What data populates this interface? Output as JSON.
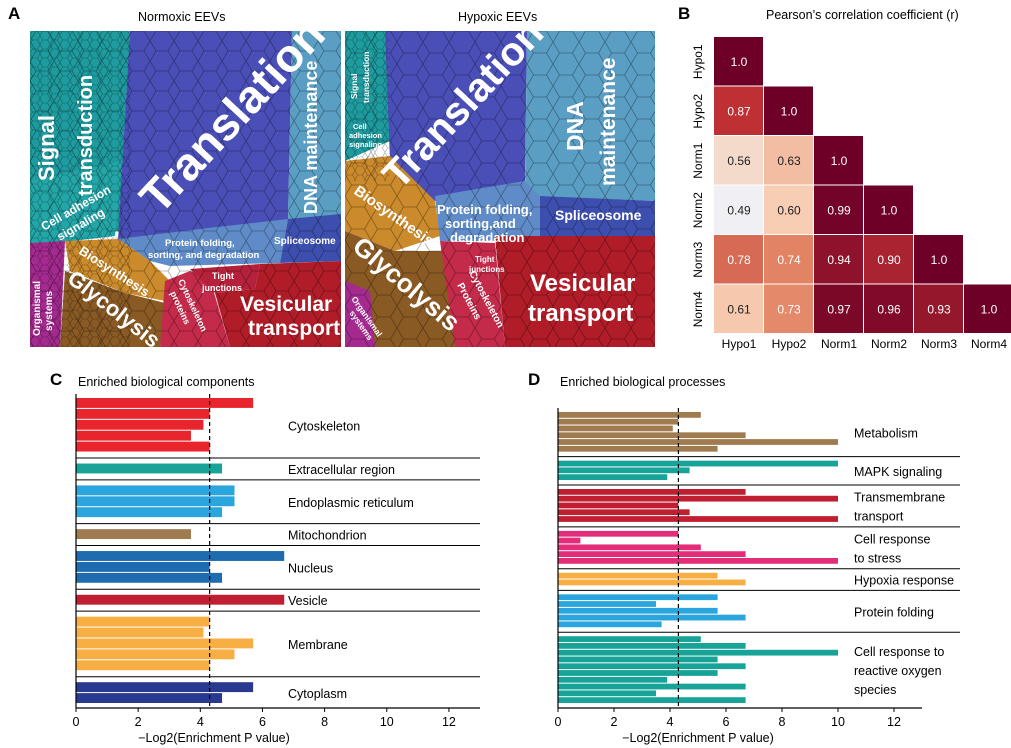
{
  "panels": {
    "A": "A",
    "B": "B",
    "C": "C",
    "D": "D"
  },
  "panel_a": {
    "titles": [
      "Normoxic EEVs",
      "Hypoxic EEVs"
    ],
    "normoxic_labels": {
      "signal": "Signal transduction",
      "cell_adhesion": "Cell adhesion signaling",
      "translation": "Translation",
      "dna": "DNA maintenance",
      "spliceosome": "Spliceosome",
      "protein_folding": "Protein folding, sorting, and degradation",
      "biosynthesis": "Biosynthesis",
      "glycolysis": "Glycolysis",
      "organismal": "Organismal systems",
      "cytoskeleton": "Cytoskeleton proteins",
      "tight": "Tight junctions",
      "vesicular": "Vesicular transport"
    },
    "hypoxic_labels": {
      "signal": "Signal transduction",
      "cell_adhesion": "Cell adhesion signaling",
      "translation": "Translation",
      "dna": "DNA maintenance",
      "spliceosome": "Spliceosome",
      "protein_folding": "Protein folding, sorting,and degradation",
      "biosynthesis": "Biosynthesis",
      "glycolysis": "Glycolysis",
      "organismal": "Organismal systems",
      "cytoskeleton": "Cytoskeleton Proteins",
      "tight": "Tight junctions",
      "vesicular": "Vesicular transport"
    },
    "colors": {
      "translation": "#4a4fb8",
      "signal": "#1d9a9a",
      "dna": "#5a9ec4",
      "spliceosome": "#3d4fae",
      "protein_folding": "#5d86c6",
      "biosynthesis": "#c9862a",
      "glycolysis": "#8a5a24",
      "organismal": "#a32a8e",
      "cytoskeleton": "#c02a4a",
      "vesicular": "#b21e2a"
    }
  },
  "chart_data": [
    {
      "type": "heatmap",
      "title": "Pearson’s correlation coefficient (r)",
      "rows": [
        "Hypo1",
        "Hypo2",
        "Norm1",
        "Norm2",
        "Norm3",
        "Norm4"
      ],
      "cols": [
        "Hypo1",
        "Hypo2",
        "Norm1",
        "Norm2",
        "Norm3",
        "Norm4"
      ],
      "values": [
        [
          1.0
        ],
        [
          0.87,
          1.0
        ],
        [
          0.56,
          0.63,
          1.0
        ],
        [
          0.49,
          0.6,
          0.99,
          1.0
        ],
        [
          0.78,
          0.74,
          0.94,
          0.9,
          1.0
        ],
        [
          0.61,
          0.73,
          0.97,
          0.96,
          0.93,
          1.0
        ]
      ],
      "value_labels": [
        [
          "1.0"
        ],
        [
          "0.87",
          "1.0"
        ],
        [
          "0.56",
          "0.63",
          "1.0"
        ],
        [
          "0.49",
          "0.60",
          "0.99",
          "1.0"
        ],
        [
          "0.78",
          "0.74",
          "0.94",
          "0.90",
          "1.0"
        ],
        [
          "0.61",
          "0.73",
          "0.97",
          "0.96",
          "0.93",
          "1.0"
        ]
      ]
    },
    {
      "type": "bar",
      "orientation": "horizontal",
      "title": "Enriched biological components",
      "xlabel": "−Log2(Enrichment P value)",
      "xlim": [
        0,
        13
      ],
      "xticks": [
        0,
        2,
        4,
        6,
        8,
        10,
        12
      ],
      "threshold": 4.3,
      "groups": [
        {
          "name": "Cytoskeleton",
          "color": "#e8242d",
          "values": [
            5.7,
            4.3,
            4.1,
            3.7,
            4.3
          ]
        },
        {
          "name": "Extracellular region",
          "color": "#17a398",
          "values": [
            4.7
          ]
        },
        {
          "name": "Endoplasmic reticulum",
          "color": "#2aa5dd",
          "values": [
            5.1,
            5.1,
            4.7
          ]
        },
        {
          "name": "Mitochondrion",
          "color": "#a07b50",
          "values": [
            3.7
          ]
        },
        {
          "name": "Nucleus",
          "color": "#1e6bb0",
          "values": [
            6.7,
            4.3,
            4.7
          ]
        },
        {
          "name": "Vesicle",
          "color": "#c01f32",
          "values": [
            6.7
          ]
        },
        {
          "name": "Membrane",
          "color": "#f7ae43",
          "values": [
            4.3,
            4.1,
            5.7,
            5.1,
            4.3
          ]
        },
        {
          "name": "Cytoplasm",
          "color": "#2a3990",
          "values": [
            5.7,
            4.7
          ]
        }
      ]
    },
    {
      "type": "bar",
      "orientation": "horizontal",
      "title": "Enriched biological processes",
      "xlabel": "−Log2(Enrichment P value)",
      "xlim": [
        0,
        13
      ],
      "xticks": [
        0,
        2,
        4,
        6,
        8,
        10,
        12
      ],
      "threshold": 4.3,
      "groups": [
        {
          "name": "Metabolism",
          "color": "#a07b50",
          "values": [
            5.1,
            4.3,
            4.1,
            6.7,
            10,
            5.7
          ]
        },
        {
          "name": "MAPK signaling",
          "color": "#17a398",
          "values": [
            10,
            4.7,
            3.9
          ]
        },
        {
          "name": "Transmembrane transport",
          "color": "#c01f32",
          "values": [
            6.7,
            10,
            4.3,
            4.7,
            10
          ]
        },
        {
          "name": "Cell response to stress",
          "color": "#e42d7a",
          "values": [
            4.3,
            0.8,
            5.1,
            6.7,
            10
          ]
        },
        {
          "name": "Hypoxia response",
          "color": "#f7ae43",
          "values": [
            5.7,
            6.7
          ]
        },
        {
          "name": "Protein folding",
          "color": "#2aa5dd",
          "values": [
            5.7,
            3.5,
            5.7,
            6.7,
            3.7
          ]
        },
        {
          "name": "Cell response to reactive oxygen species",
          "color": "#17a398",
          "values": [
            5.1,
            6.7,
            10,
            5.7,
            6.7,
            5.7,
            3.9,
            6.7,
            3.5,
            6.7
          ]
        }
      ]
    }
  ],
  "panel_c_labels": [
    "Cytoskeleton",
    "Extracellular region",
    "Endoplasmic reticulum",
    "Mitochondrion",
    "Nucleus",
    "Vesicle",
    "Membrane",
    "Cytoplasm"
  ],
  "panel_d_labels": [
    "Metabolism",
    "MAPK signaling",
    "Transmembrane\ntransport",
    "Cell response\nto stress",
    "Hypoxia response",
    "Protein folding",
    "Cell response to\nreactive oxygen\nspecies"
  ]
}
